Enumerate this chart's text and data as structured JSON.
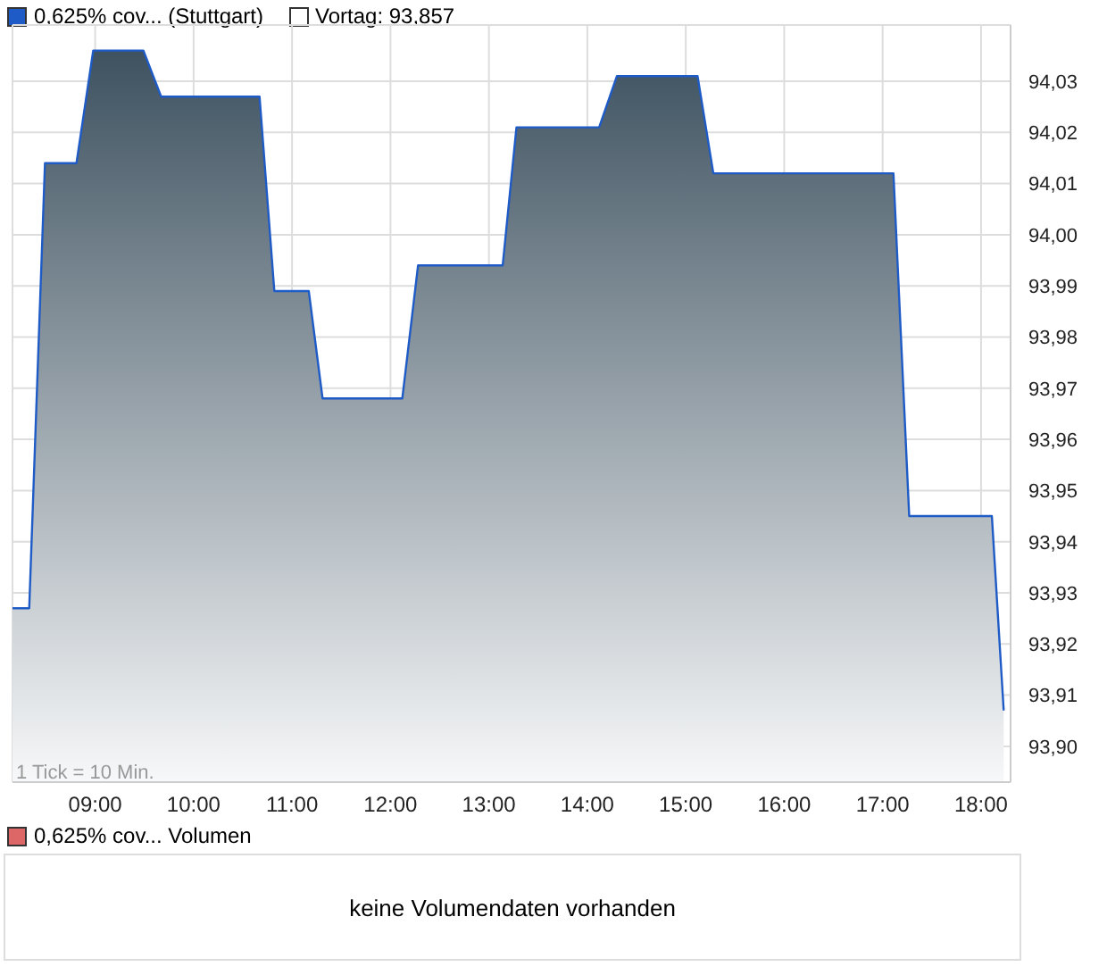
{
  "chart_data": {
    "type": "area",
    "legend": "top left",
    "grid": true,
    "x": [
      8.16,
      8.33,
      8.49,
      8.81,
      8.98,
      9.49,
      9.67,
      10.67,
      10.82,
      11.17,
      11.31,
      12.12,
      12.28,
      13.14,
      13.28,
      14.12,
      14.3,
      15.12,
      15.28,
      17.11,
      17.27,
      18.11,
      18.23
    ],
    "series": [
      {
        "name": "0,625% cov... (Stuttgart)",
        "color": "#1f5bc6",
        "values": [
          93.927,
          93.927,
          94.014,
          94.014,
          94.036,
          94.036,
          94.027,
          94.027,
          93.989,
          93.989,
          93.968,
          93.968,
          93.994,
          93.994,
          94.021,
          94.021,
          94.031,
          94.031,
          94.012,
          94.012,
          93.945,
          93.945,
          93.907
        ]
      }
    ],
    "xlim": [
      8.16,
      18.3
    ],
    "xticks": [
      {
        "value": 9,
        "label": "09:00"
      },
      {
        "value": 10,
        "label": "10:00"
      },
      {
        "value": 11,
        "label": "11:00"
      },
      {
        "value": 12,
        "label": "12:00"
      },
      {
        "value": 13,
        "label": "13:00"
      },
      {
        "value": 14,
        "label": "14:00"
      },
      {
        "value": 15,
        "label": "15:00"
      },
      {
        "value": 16,
        "label": "16:00"
      },
      {
        "value": 17,
        "label": "17:00"
      },
      {
        "value": 18,
        "label": "18:00"
      }
    ],
    "ylim": [
      93.893,
      94.041
    ],
    "yticks": [
      {
        "value": 93.9,
        "label": "93,90"
      },
      {
        "value": 93.91,
        "label": "93,91"
      },
      {
        "value": 93.92,
        "label": "93,92"
      },
      {
        "value": 93.93,
        "label": "93,93"
      },
      {
        "value": 93.94,
        "label": "93,94"
      },
      {
        "value": 93.95,
        "label": "93,95"
      },
      {
        "value": 93.96,
        "label": "93,96"
      },
      {
        "value": 93.97,
        "label": "93,97"
      },
      {
        "value": 93.98,
        "label": "93,98"
      },
      {
        "value": 93.99,
        "label": "93,99"
      },
      {
        "value": 94.0,
        "label": "94,00"
      },
      {
        "value": 94.01,
        "label": "94,01"
      },
      {
        "value": 94.02,
        "label": "94,02"
      },
      {
        "value": 94.03,
        "label": "94,03"
      }
    ],
    "annotations": [
      "Vortag: 93,857",
      "1 Tick = 10 Min.",
      "0,625% cov... Volumen",
      "keine Volumendaten vorhanden"
    ]
  }
}
